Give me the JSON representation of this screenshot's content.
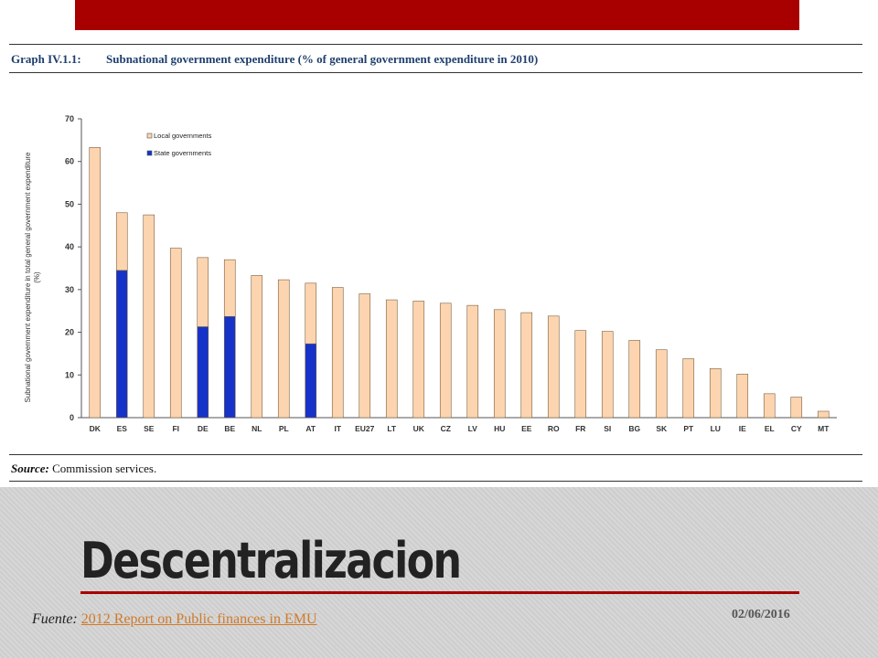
{
  "slide": {
    "title": "Descentralizacion",
    "source_prefix": "Fuente:",
    "source_link": "2012 Report on Public finances in EMU",
    "date": "02/06/2016"
  },
  "graph": {
    "number": "Graph IV.1.1:",
    "title": "Subnational government expenditure (% of general government expenditure in 2010)",
    "source_label": "Source:",
    "source_text": "Commission services."
  },
  "chart_data": {
    "type": "bar",
    "stacked": true,
    "categories": [
      "DK",
      "ES",
      "SE",
      "FI",
      "DE",
      "BE",
      "NL",
      "PL",
      "AT",
      "IT",
      "EU27",
      "LT",
      "UK",
      "CZ",
      "LV",
      "HU",
      "EE",
      "RO",
      "FR",
      "SI",
      "BG",
      "SK",
      "PT",
      "LU",
      "IE",
      "EL",
      "CY",
      "MT"
    ],
    "series": [
      {
        "name": "State governments",
        "color": "#1533c8",
        "values": [
          0,
          34.5,
          0,
          0,
          21.3,
          23.7,
          0,
          0,
          17.3,
          0,
          0,
          0,
          0,
          0,
          0,
          0,
          0,
          0,
          0,
          0,
          0,
          0,
          0,
          0,
          0,
          0,
          0,
          0
        ]
      },
      {
        "name": "Local governments",
        "color": "#fcd5b0",
        "values": [
          63.3,
          13.5,
          47.5,
          39.7,
          16.2,
          13.3,
          33.3,
          32.3,
          14.2,
          30.5,
          29,
          27.6,
          27.3,
          26.8,
          26.3,
          25.3,
          24.6,
          23.8,
          20.4,
          20.2,
          18.1,
          15.9,
          13.8,
          11.5,
          10.2,
          5.6,
          4.8,
          1.5
        ]
      }
    ],
    "ylabel": "Subnational government expenditure in total general government expenditure (%)",
    "ylim": [
      0,
      70
    ],
    "yticks": [
      0,
      10,
      20,
      30,
      40,
      50,
      60,
      70
    ],
    "legend": "top-left",
    "grid": false
  }
}
